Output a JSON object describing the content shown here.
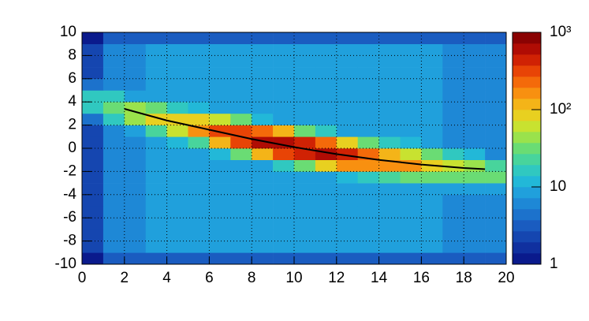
{
  "chart_data": {
    "type": "heatmap",
    "x_bins": [
      0,
      1,
      2,
      3,
      4,
      5,
      6,
      7,
      8,
      9,
      10,
      11,
      12,
      13,
      14,
      15,
      16,
      17,
      18,
      19,
      20
    ],
    "y_bins": [
      -10,
      -9,
      -8,
      -7,
      -6,
      -5,
      -4,
      -3,
      -2,
      -1,
      0,
      1,
      2,
      3,
      4,
      5,
      6,
      7,
      8,
      9,
      10
    ],
    "z": [
      [
        1,
        3,
        3,
        3,
        3,
        3,
        3,
        3,
        3,
        3,
        3,
        3,
        3,
        3,
        3,
        3,
        3,
        3,
        3,
        3
      ],
      [
        2,
        6,
        7,
        8,
        8,
        8,
        8,
        8,
        8,
        8,
        8,
        8,
        8,
        8,
        8,
        8,
        8,
        7,
        7,
        6
      ],
      [
        2,
        6,
        7,
        8,
        8,
        8,
        8,
        8,
        8,
        8,
        8,
        8,
        8,
        8,
        8,
        8,
        8,
        7,
        7,
        6
      ],
      [
        2,
        6,
        7,
        8,
        8,
        8,
        8,
        8,
        8,
        8,
        8,
        8,
        8,
        8,
        8,
        8,
        8,
        7,
        7,
        6
      ],
      [
        2,
        6,
        7,
        8,
        8,
        8,
        8,
        8,
        8,
        8,
        8,
        8,
        8,
        8,
        8,
        8,
        8,
        7,
        7,
        6
      ],
      [
        2,
        6,
        7,
        8,
        8,
        8,
        8,
        8,
        8,
        8,
        8,
        8,
        8,
        8,
        8,
        8,
        8,
        7,
        7,
        6
      ],
      [
        2,
        6,
        7,
        8,
        8,
        8,
        8,
        8,
        8,
        8,
        8,
        8,
        8,
        8,
        8,
        8,
        8,
        8,
        8,
        8
      ],
      [
        2,
        6,
        7,
        8,
        8,
        8,
        8,
        8,
        8,
        8,
        8,
        8,
        11,
        17,
        21,
        27,
        30,
        32,
        31,
        30
      ],
      [
        2,
        6,
        7,
        8,
        8,
        8,
        8,
        8,
        9,
        16,
        37,
        82,
        145,
        191,
        168,
        140,
        98,
        64,
        39,
        24
      ],
      [
        2,
        6,
        7,
        8,
        8,
        8,
        10,
        28,
        120,
        295,
        468,
        528,
        422,
        248,
        130,
        65,
        30,
        15,
        10,
        7
      ],
      [
        2,
        6,
        7,
        8,
        10,
        25,
        106,
        326,
        600,
        670,
        468,
        234,
        86,
        28,
        14,
        10,
        8,
        7,
        7,
        6
      ],
      [
        2,
        6,
        9,
        21,
        59,
        167,
        304,
        326,
        203,
        103,
        37,
        14,
        9,
        8,
        8,
        8,
        8,
        7,
        7,
        6
      ],
      [
        4,
        14,
        42,
        77,
        96,
        99,
        64,
        28,
        12,
        9,
        8,
        8,
        8,
        8,
        8,
        8,
        8,
        7,
        7,
        6
      ],
      [
        17,
        36,
        42,
        31,
        18,
        11,
        9,
        8,
        8,
        8,
        8,
        8,
        8,
        8,
        8,
        8,
        8,
        7,
        7,
        6
      ],
      [
        17,
        14,
        9,
        8,
        8,
        8,
        8,
        8,
        8,
        8,
        8,
        8,
        8,
        8,
        8,
        8,
        8,
        7,
        7,
        6
      ],
      [
        4,
        6,
        7,
        8,
        8,
        8,
        8,
        8,
        8,
        8,
        8,
        8,
        8,
        8,
        8,
        8,
        8,
        7,
        7,
        6
      ],
      [
        2,
        6,
        7,
        8,
        8,
        8,
        8,
        8,
        8,
        8,
        8,
        8,
        8,
        8,
        8,
        8,
        8,
        7,
        7,
        6
      ],
      [
        2,
        6,
        7,
        8,
        8,
        8,
        8,
        8,
        8,
        8,
        8,
        8,
        8,
        8,
        8,
        8,
        8,
        7,
        7,
        6
      ],
      [
        2,
        6,
        7,
        8,
        8,
        8,
        8,
        8,
        8,
        8,
        8,
        8,
        8,
        8,
        8,
        8,
        8,
        7,
        7,
        6
      ],
      [
        1,
        3,
        3,
        3,
        3,
        3,
        3,
        3,
        3,
        3,
        3,
        3,
        3,
        3,
        3,
        3,
        3,
        3,
        3,
        3
      ]
    ],
    "xlim": [
      0,
      20
    ],
    "xticks": [
      0,
      2,
      4,
      6,
      8,
      10,
      12,
      14,
      16,
      18,
      20
    ],
    "ylim": [
      -10,
      10
    ],
    "yticks": [
      -10,
      -8,
      -6,
      -4,
      -2,
      0,
      2,
      4,
      6,
      8,
      10
    ],
    "zlim": [
      1,
      1000
    ],
    "log_z": true,
    "zticks": [
      1,
      10,
      {
        "value": 100,
        "label": "10²"
      },
      {
        "value": 1000,
        "label": "10³"
      }
    ],
    "grid": true,
    "palette": [
      "#0a1a8c",
      "#10309f",
      "#1546b0",
      "#1a5cc0",
      "#1c72cc",
      "#1e88d6",
      "#20a0dc",
      "#22b8d8",
      "#30c8c0",
      "#48d49c",
      "#6adc74",
      "#9ae24c",
      "#c8e230",
      "#e8d020",
      "#f4b418",
      "#f89010",
      "#f46a0a",
      "#e84406",
      "#d02204",
      "#b00c04",
      "#8a0202"
    ],
    "fit": {
      "x": [
        2,
        4,
        6,
        8,
        10,
        12,
        14,
        16,
        18,
        19
      ],
      "y": [
        3.4,
        2.4,
        1.6,
        0.8,
        0.1,
        -0.5,
        -1.0,
        -1.4,
        -1.7,
        -1.8
      ],
      "color": "#000000"
    }
  }
}
